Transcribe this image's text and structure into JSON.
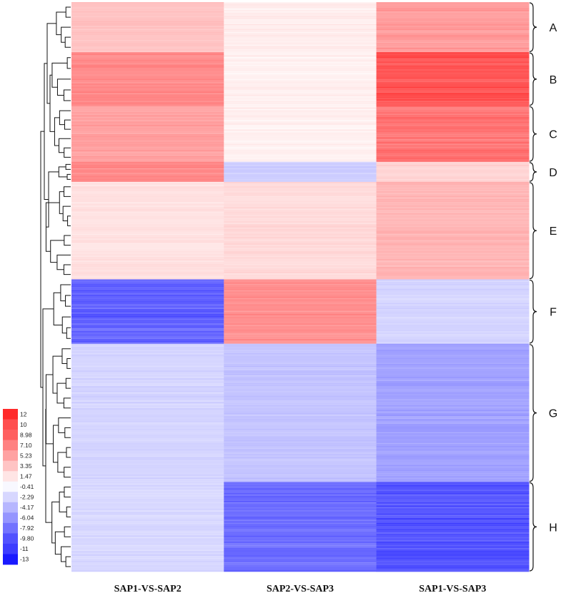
{
  "chart_data": {
    "type": "heatmap",
    "title": "",
    "columns": [
      "SAP1-VS-SAP2",
      "SAP2-VS-SAP3",
      "SAP1-VS-SAP3"
    ],
    "clusters": [
      {
        "label": "A",
        "rows": 70,
        "values": [
          3.4,
          1.0,
          5.6
        ]
      },
      {
        "label": "B",
        "rows": 75,
        "values": [
          6.6,
          0.9,
          9.6
        ]
      },
      {
        "label": "C",
        "rows": 78,
        "values": [
          5.3,
          0.8,
          7.6
        ]
      },
      {
        "label": "D",
        "rows": 28,
        "values": [
          6.5,
          -2.8,
          2.5
        ]
      },
      {
        "label": "E",
        "rows": 136,
        "values": [
          1.6,
          2.1,
          4.1
        ]
      },
      {
        "label": "F",
        "rows": 90,
        "values": [
          -8.8,
          6.3,
          -2.4
        ]
      },
      {
        "label": "G",
        "rows": 193,
        "values": [
          -2.4,
          -3.3,
          -5.3
        ]
      },
      {
        "label": "H",
        "rows": 125,
        "values": [
          -2.2,
          -8.0,
          -9.6
        ]
      }
    ],
    "color_scale": {
      "min": -13,
      "max": 12,
      "low_color": "#1a1aff",
      "mid_color": "#ffffff",
      "high_color": "#ff2a2a",
      "legend_labels": [
        "12",
        "10",
        "8.98",
        "7.10",
        "5.23",
        "3.35",
        "1.47",
        "-0.41",
        "-2.29",
        "-4.17",
        "-6.04",
        "-7.92",
        "-9.80",
        "-11",
        "-13"
      ]
    }
  }
}
